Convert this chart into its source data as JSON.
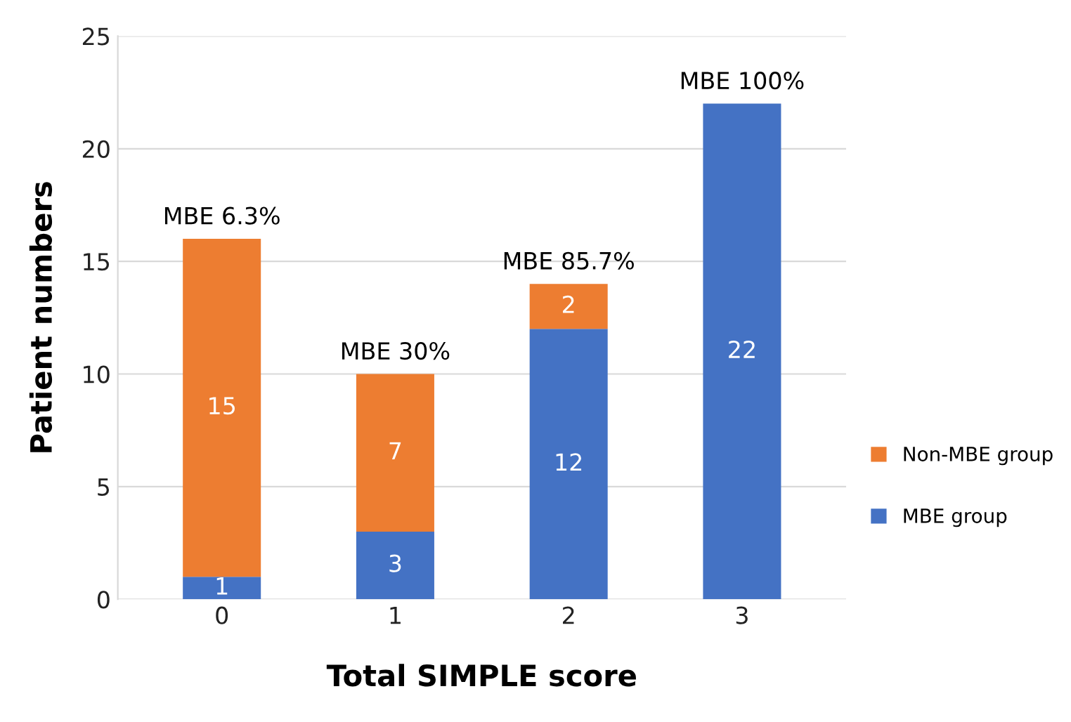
{
  "chart_data": {
    "type": "bar",
    "stacked": true,
    "xlabel": "Total SIMPLE score",
    "ylabel": "Patient numbers",
    "categories": [
      "0",
      "1",
      "2",
      "3"
    ],
    "series": [
      {
        "name": "MBE group",
        "color": "#4472c4",
        "values": [
          1,
          3,
          12,
          22
        ],
        "value_labels": [
          "1",
          "3",
          "12",
          "22"
        ]
      },
      {
        "name": "Non-MBE group",
        "color": "#ed7d31",
        "values": [
          15,
          7,
          2,
          null
        ],
        "value_labels": [
          "15",
          "7",
          "2",
          null
        ]
      }
    ],
    "ylim": [
      0,
      25
    ],
    "yticks": [
      0,
      5,
      10,
      15,
      20,
      25
    ],
    "grid": "y",
    "legend": "right",
    "annotations": [
      {
        "text": "MBE 6.3%",
        "x": "0",
        "y": 16
      },
      {
        "text": "MBE 30%",
        "x": "1",
        "y": 10
      },
      {
        "text": "MBE 85.7%",
        "x": "2",
        "y": 14
      },
      {
        "text": "MBE 100%",
        "x": "3",
        "y": 22
      }
    ]
  }
}
